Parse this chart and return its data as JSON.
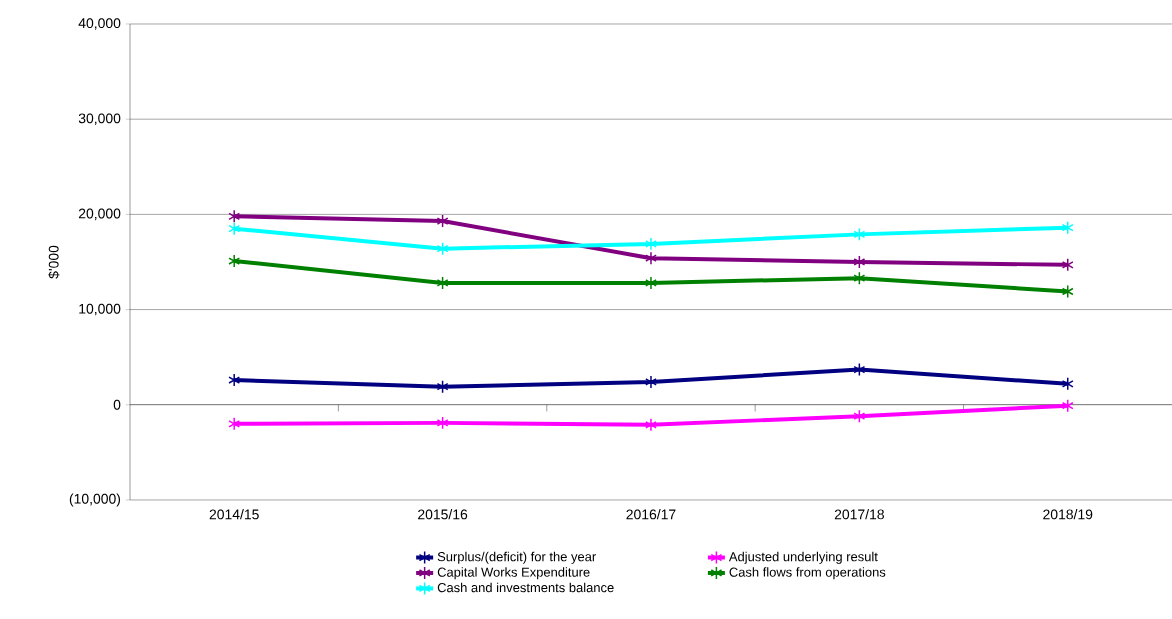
{
  "chart_data": {
    "type": "line",
    "ylabel": "$'000",
    "categories": [
      "2014/15",
      "2015/16",
      "2016/17",
      "2017/18",
      "2018/19"
    ],
    "series": [
      {
        "name": "Surplus/(deficit) for the year",
        "color": "#000080",
        "values": [
          2600,
          1900,
          2400,
          3700,
          2200
        ]
      },
      {
        "name": "Adjusted underlying result",
        "color": "#ff00ff",
        "values": [
          -2000,
          -1900,
          -2100,
          -1200,
          -100
        ]
      },
      {
        "name": "Capital Works Expenditure",
        "color": "#800080",
        "values": [
          19800,
          19300,
          15400,
          15000,
          14700
        ]
      },
      {
        "name": "Cash flows from operations",
        "color": "#008000",
        "values": [
          15100,
          12800,
          12800,
          13300,
          11900
        ]
      },
      {
        "name": "Cash and investments balance",
        "color": "#00ffff",
        "values": [
          18500,
          16400,
          16900,
          17900,
          18600
        ]
      }
    ],
    "ylim": [
      -10000,
      40000
    ],
    "yticks": [
      {
        "value": -10000,
        "label": "(10,000)"
      },
      {
        "value": 0,
        "label": "0"
      },
      {
        "value": 10000,
        "label": "10,000"
      },
      {
        "value": 20000,
        "label": "20,000"
      },
      {
        "value": 30000,
        "label": "30,000"
      },
      {
        "value": 40000,
        "label": "40,000"
      }
    ],
    "grid": "y",
    "legend": "bottom",
    "marker": "cross",
    "line_style": "solid"
  }
}
